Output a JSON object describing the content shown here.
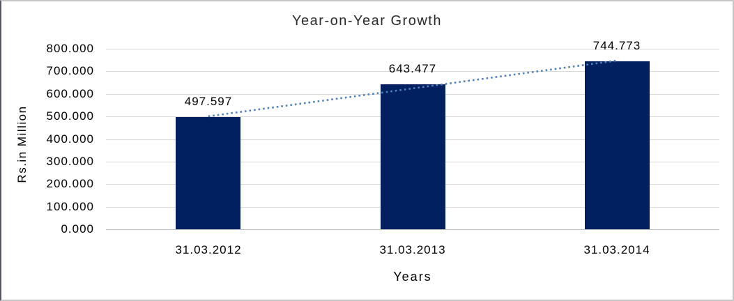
{
  "chart_data": {
    "type": "bar",
    "title": "Year-on-Year Growth",
    "xlabel": "Years",
    "ylabel": "Rs.in Million",
    "categories": [
      "31.03.2012",
      "31.03.2013",
      "31.03.2014"
    ],
    "values": [
      497.597,
      643.477,
      744.773
    ],
    "data_labels": [
      "497.597",
      "643.477",
      "744.773"
    ],
    "ylim": [
      0,
      800
    ],
    "ytick_step": 100,
    "ytick_labels": [
      "0.000",
      "100.000",
      "200.000",
      "300.000",
      "400.000",
      "500.000",
      "600.000",
      "700.000",
      "800.000"
    ],
    "grid": true,
    "legend": "none",
    "trendline": {
      "type": "linear",
      "style": "dotted"
    },
    "colors": {
      "bar": "#002060",
      "trendline": "#4f81bd",
      "gridline": "#d9d9d9",
      "axis_line": "#bfbfbf",
      "text": "#000000",
      "title_text": "#2b2b2b"
    }
  }
}
